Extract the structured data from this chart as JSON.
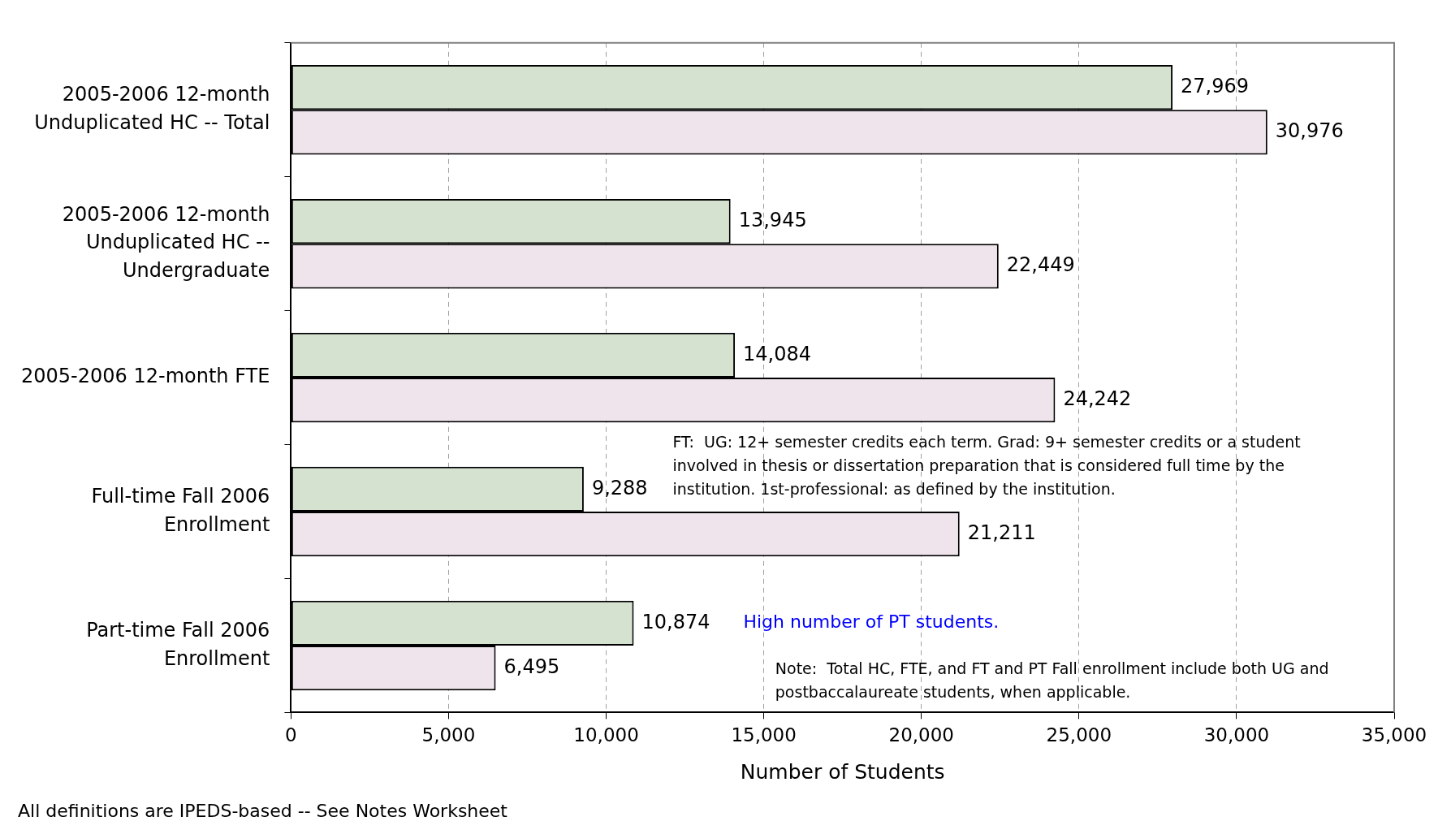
{
  "chart_data": {
    "type": "bar",
    "orientation": "horizontal",
    "xlabel": "Number of Students",
    "categories": [
      "2005-2006 12-month Unduplicated HC -- Total",
      "2005-2006 12-month Unduplicated HC -- Undergraduate",
      "2005-2006 12-month FTE",
      "Full-time Fall 2006 Enrollment",
      "Part-time Fall 2006 Enrollment"
    ],
    "series": [
      {
        "color": "#d5e2cf",
        "values": [
          27969,
          13945,
          14084,
          9288,
          10874
        ],
        "value_labels": [
          "27,969",
          "13,945",
          "14,084",
          "9,288",
          "10,874"
        ]
      },
      {
        "color": "#efe3ec",
        "values": [
          30976,
          22449,
          24242,
          21211,
          6495
        ],
        "value_labels": [
          "30,976",
          "22,449",
          "24,242",
          "21,211",
          "6,495"
        ]
      }
    ],
    "xlim": [
      0,
      35000
    ],
    "xticks": [
      {
        "value": 0,
        "label": "0"
      },
      {
        "value": 5000,
        "label": "5,000"
      },
      {
        "value": 10000,
        "label": "10,000"
      },
      {
        "value": 15000,
        "label": "15,000"
      },
      {
        "value": 20000,
        "label": "20,000"
      },
      {
        "value": 25000,
        "label": "25,000"
      },
      {
        "value": 30000,
        "label": "30,000"
      },
      {
        "value": 35000,
        "label": "35,000"
      }
    ],
    "grid": "x",
    "annotations": [
      "FT:  UG: 12+ semester credits each term. Grad: 9+ semester credits or a student involved in thesis or dissertation preparation that is considered full time by the institution. 1st-professional: as defined by the institution.",
      "High number of PT students.",
      "Note:  Total HC, FTE, and FT and PT Fall enrollment include both UG and postbaccalaureate students, when applicable.",
      "All definitions are IPEDS-based -- See Notes Worksheet"
    ]
  }
}
